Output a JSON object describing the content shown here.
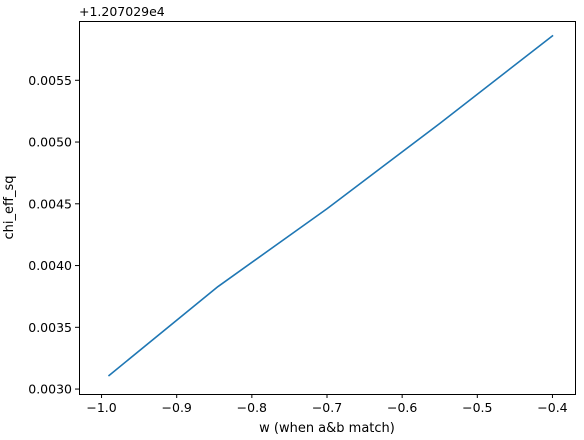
{
  "chart_data": {
    "type": "line",
    "xlabel": "w (when a&b match)",
    "ylabel": "chi_eff_sq",
    "y_offset_text": "+1.207029e4",
    "xlim": [
      -1.03,
      -0.37
    ],
    "ylim": [
      0.00296,
      0.00598
    ],
    "x_ticks": [
      -1.0,
      -0.9,
      -0.8,
      -0.7,
      -0.6,
      -0.5,
      -0.4
    ],
    "x_tick_labels": [
      "−1.0",
      "−0.9",
      "−0.8",
      "−0.7",
      "−0.6",
      "−0.5",
      "−0.4"
    ],
    "y_ticks": [
      0.003,
      0.0035,
      0.004,
      0.0045,
      0.005,
      0.0055
    ],
    "y_tick_labels": [
      "0.0030",
      "0.0035",
      "0.0040",
      "0.0045",
      "0.0050",
      "0.0055"
    ],
    "grid": false,
    "series": [
      {
        "color": "#1f77b4",
        "x": [
          -0.99,
          -0.845,
          -0.7,
          -0.55,
          -0.4
        ],
        "y": [
          0.00311,
          0.00383,
          0.00446,
          0.00515,
          0.00586
        ]
      }
    ]
  }
}
